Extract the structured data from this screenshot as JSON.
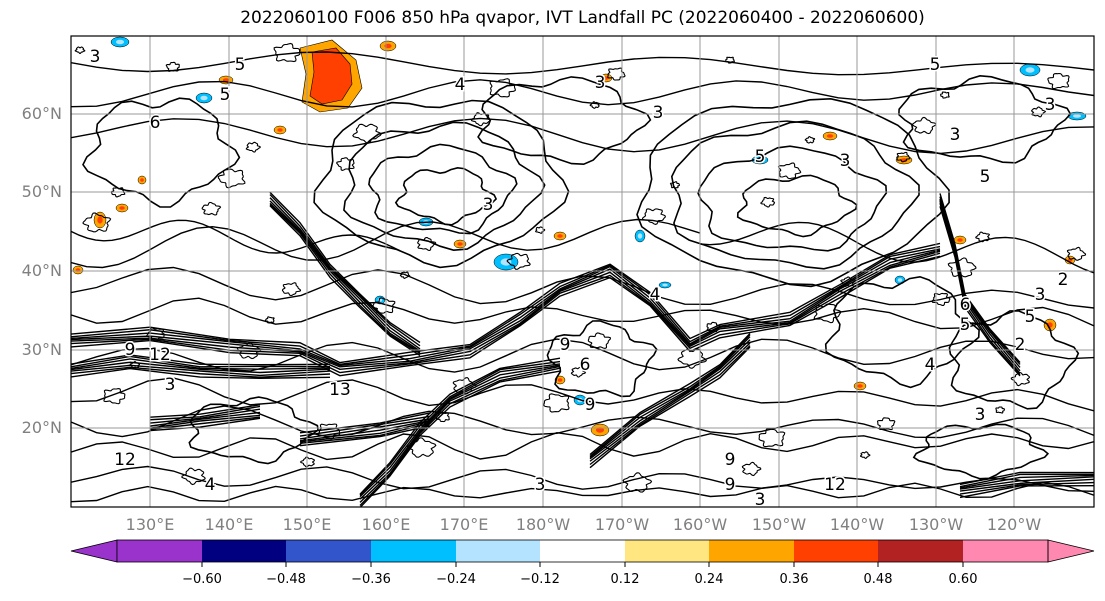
{
  "title": "2022060100 F006 850 hPa qvapor, IVT Landfall PC (2022060400 - 2022060600)",
  "lat_labels": [
    "60°N",
    "50°N",
    "40°N",
    "30°N",
    "20°N"
  ],
  "lon_labels": [
    "130°E",
    "140°E",
    "150°E",
    "160°E",
    "170°E",
    "180°W",
    "170°W",
    "160°W",
    "150°W",
    "140°W",
    "130°W",
    "120°W"
  ],
  "contour_labels": [
    "3",
    "5",
    "6",
    "4",
    "3",
    "5",
    "3",
    "3",
    "5",
    "5",
    "3",
    "3",
    "6",
    "4",
    "5",
    "5",
    "3",
    "2",
    "9",
    "12",
    "9",
    "9",
    "13",
    "4",
    "3",
    "12",
    "3",
    "6",
    "4",
    "3",
    "9",
    "9",
    "3",
    "12",
    "5",
    "3",
    "2"
  ],
  "colorbar": {
    "ticks": [
      "−0.60",
      "−0.48",
      "−0.36",
      "−0.24",
      "−0.12",
      "0.12",
      "0.24",
      "0.36",
      "0.48",
      "0.60"
    ],
    "colors": [
      "#9933cc",
      "#000080",
      "#3355cc",
      "#00bfff",
      "#b3e3ff",
      "#ffffff",
      "#ffe680",
      "#ffa500",
      "#ff4000",
      "#b22222",
      "#ff88b0"
    ]
  }
}
